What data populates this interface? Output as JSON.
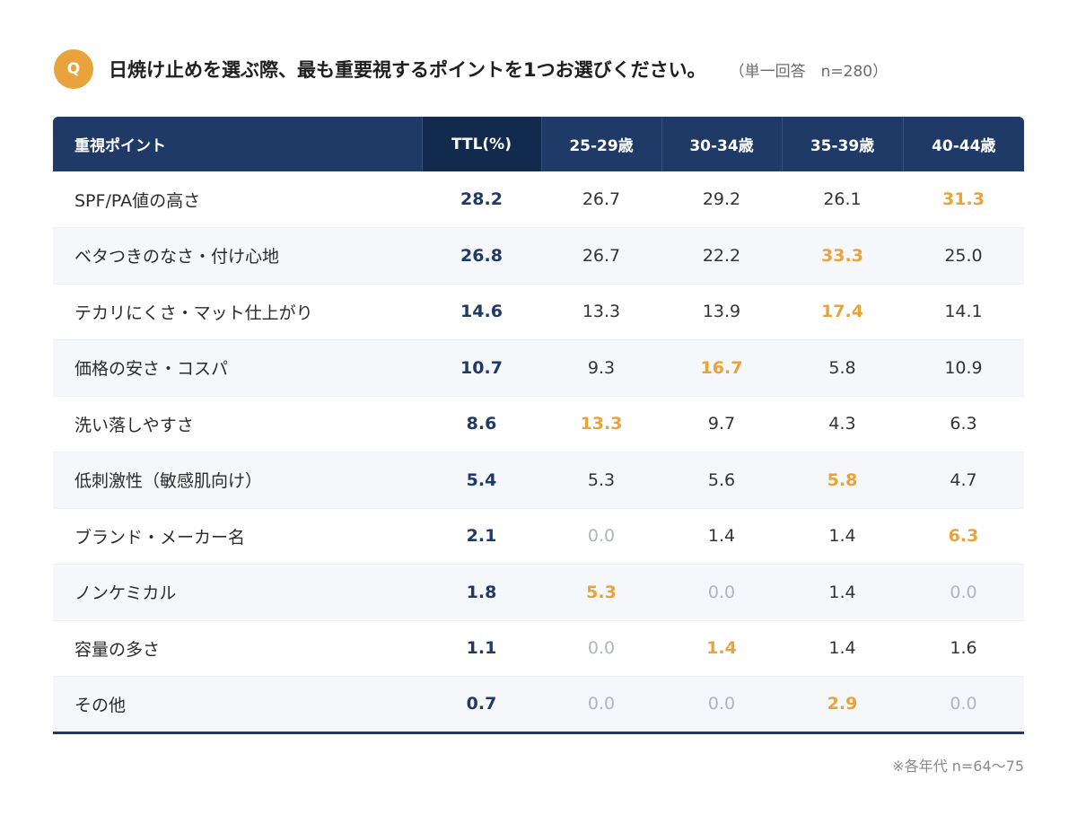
{
  "header": {
    "badge": "Q",
    "question": "日焼け止めを選ぶ際、最も重要視するポイントを1つお選びください。",
    "note": "（単一回答　n=280）"
  },
  "colors": {
    "navy": "#1f3a66",
    "highlight": "#e8a33c",
    "zero": "#b0b5bd"
  },
  "chart_data": {
    "type": "table",
    "columns": [
      "重視ポイント",
      "TTL(%)",
      "25-29歳",
      "30-34歳",
      "35-39歳",
      "40-44歳"
    ],
    "rows": [
      {
        "label": "SPF/PA値の高さ",
        "values": [
          "28.2",
          "26.7",
          "29.2",
          "26.1",
          "31.3"
        ],
        "highlight": 4
      },
      {
        "label": "ベタつきのなさ・付け心地",
        "values": [
          "26.8",
          "26.7",
          "22.2",
          "33.3",
          "25.0"
        ],
        "highlight": 3
      },
      {
        "label": "テカリにくさ・マット仕上がり",
        "values": [
          "14.6",
          "13.3",
          "13.9",
          "17.4",
          "14.1"
        ],
        "highlight": 3
      },
      {
        "label": "価格の安さ・コスパ",
        "values": [
          "10.7",
          "9.3",
          "16.7",
          "5.8",
          "10.9"
        ],
        "highlight": 2
      },
      {
        "label": "洗い落しやすさ",
        "values": [
          "8.6",
          "13.3",
          "9.7",
          "4.3",
          "6.3"
        ],
        "highlight": 1
      },
      {
        "label": "低刺激性（敏感肌向け）",
        "values": [
          "5.4",
          "5.3",
          "5.6",
          "5.8",
          "4.7"
        ],
        "highlight": 3
      },
      {
        "label": "ブランド・メーカー名",
        "values": [
          "2.1",
          "0.0",
          "1.4",
          "1.4",
          "6.3"
        ],
        "highlight": 4
      },
      {
        "label": "ノンケミカル",
        "values": [
          "1.8",
          "5.3",
          "0.0",
          "1.4",
          "0.0"
        ],
        "highlight": 1
      },
      {
        "label": "容量の多さ",
        "values": [
          "1.1",
          "0.0",
          "1.4",
          "1.4",
          "1.6"
        ],
        "highlight": 2
      },
      {
        "label": "その他",
        "values": [
          "0.7",
          "0.0",
          "0.0",
          "2.9",
          "0.0"
        ],
        "highlight": 3
      }
    ]
  },
  "footnote": "※各年代 n=64～75"
}
